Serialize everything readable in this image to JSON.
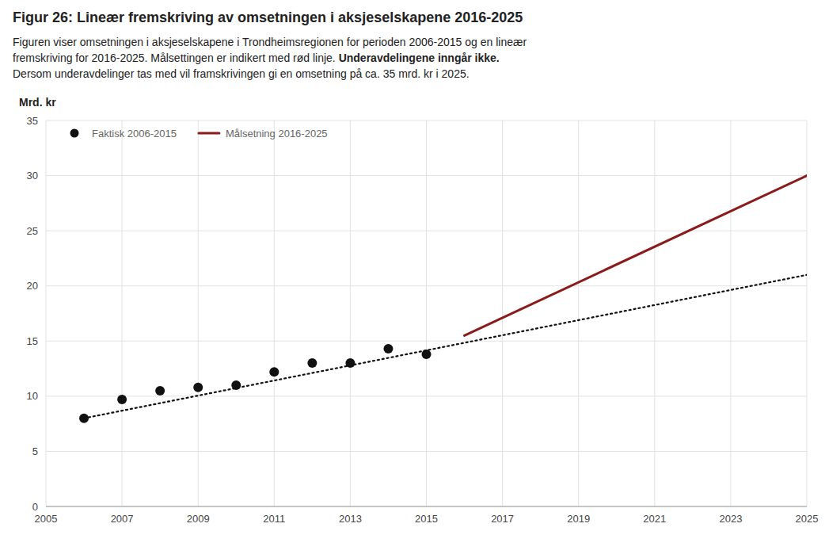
{
  "chart_data": {
    "type": "line",
    "title": "Figur 26:  Lineær fremskriving av omsetningen i aksjeselskapene 2016-2025",
    "subtitle": [
      {
        "text": "Figuren viser omsetningen i aksjeselskapene i Trondheimsregionen for perioden 2006-2015 og en lineær"
      },
      {
        "text": "fremskriving for 2016-2025. Målsettingen er indikert med rød linje. ",
        "bold": "Underavdelingene inngår ikke."
      },
      {
        "text": "Dersom underavdelinger tas med vil framskrivingen gi en omsetning på ca. 35 mrd. kr i 2025."
      }
    ],
    "y_label": "Mrd. kr",
    "xlim": [
      2005,
      2025
    ],
    "ylim": [
      0,
      35
    ],
    "xticks": [
      2005,
      2007,
      2009,
      2011,
      2013,
      2015,
      2017,
      2019,
      2021,
      2023,
      2025
    ],
    "yticks": [
      0,
      5,
      10,
      15,
      20,
      25,
      30,
      35
    ],
    "grid": true,
    "legend": "upper left",
    "series": [
      {
        "name": "Faktisk 2006-2015",
        "type": "scatter",
        "marker": "circle",
        "color": "#111111",
        "x": [
          2006,
          2007,
          2008,
          2009,
          2010,
          2011,
          2012,
          2013,
          2014,
          2015
        ],
        "values": [
          8.0,
          9.7,
          10.5,
          10.8,
          11.0,
          12.2,
          13.0,
          13.0,
          14.3,
          13.8
        ]
      },
      {
        "type": "line",
        "line_style": "dotted",
        "color": "#111111",
        "x": [
          2006,
          2025
        ],
        "values": [
          8.0,
          21.0
        ]
      },
      {
        "name": "Målsetning 2016-2025",
        "type": "line",
        "line_style": "solid",
        "color": "#8B1a1a",
        "x": [
          2016,
          2025
        ],
        "values": [
          15.5,
          30.0
        ]
      }
    ]
  }
}
